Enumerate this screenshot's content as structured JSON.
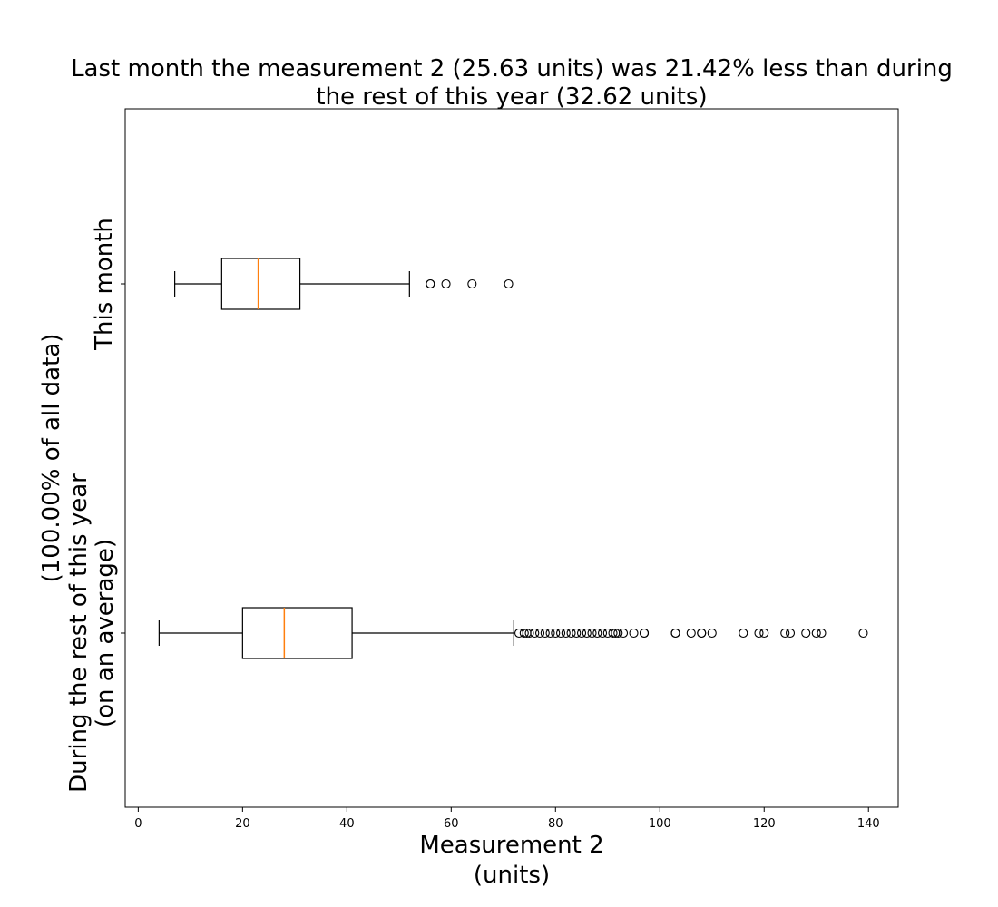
{
  "chart_data": {
    "type": "boxplot",
    "orientation": "horizontal",
    "title_lines": [
      "Last month the measurement 2 (25.63 units) was 21.42% less than during",
      "the rest of this year (32.62 units)"
    ],
    "xlabel_lines": [
      "Measurement 2",
      "(units)"
    ],
    "ylabel_lines": [
      "(100.00% of all data)"
    ],
    "xlim": [
      -2.5,
      145.7
    ],
    "x_ticks": [
      0,
      20,
      40,
      60,
      80,
      100,
      120,
      140
    ],
    "x_tick_labels": [
      "0",
      "20",
      "40",
      "60",
      "80",
      "100",
      "120",
      "140"
    ],
    "categories": [
      {
        "label_lines": [
          "This month"
        ],
        "whisker_low": 7,
        "q1": 16,
        "median": 23,
        "q3": 31,
        "whisker_high": 52,
        "outliers": [
          56,
          56,
          59,
          64,
          71
        ]
      },
      {
        "label_lines": [
          "During the rest of this year",
          "(on an average)"
        ],
        "whisker_low": 4,
        "q1": 20,
        "median": 28,
        "q3": 41,
        "whisker_high": 72,
        "outliers": [
          73,
          74,
          74.5,
          75,
          76,
          77,
          78,
          79,
          80,
          81,
          82,
          83,
          84,
          85,
          86,
          87,
          88,
          89,
          90,
          91,
          91.5,
          92,
          93,
          95,
          97,
          97,
          103,
          103,
          106,
          108,
          108,
          110,
          116,
          119,
          120,
          124,
          125,
          128,
          130,
          131,
          139
        ]
      }
    ],
    "colors": {
      "median": "#ff7f0e",
      "box": "#000000",
      "outlier": "#000000"
    }
  }
}
